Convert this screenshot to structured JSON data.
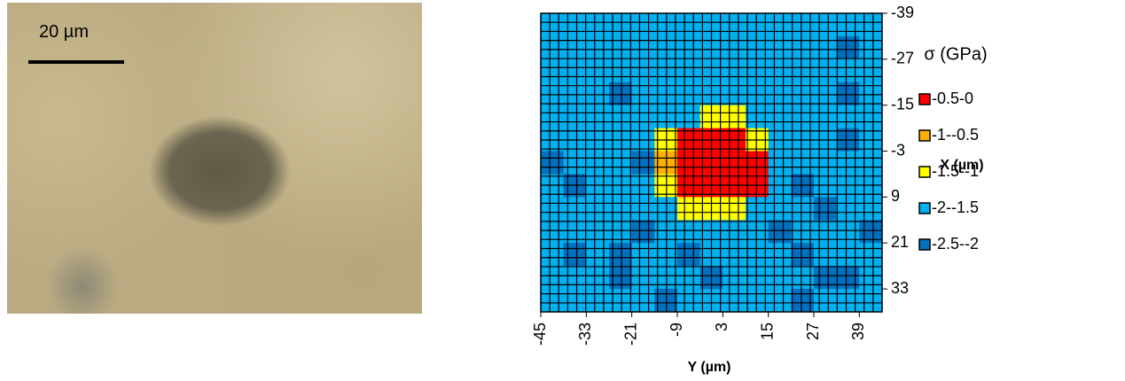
{
  "micrograph": {
    "scale_bar_label": "20 µm"
  },
  "chart_data": {
    "type": "contour",
    "x_label": "Y (µm)",
    "y_label": "X (µm)",
    "legend_title": "σ (GPa)",
    "x": [
      -42,
      -36,
      -30,
      -24,
      -18,
      -12,
      -6,
      0,
      6,
      12,
      18,
      24,
      30,
      36,
      42
    ],
    "y": [
      -36,
      -30,
      -24,
      -18,
      -12,
      -6,
      0,
      6,
      12,
      18,
      24,
      30,
      36
    ],
    "z": [
      [
        -1.8,
        -1.8,
        -1.8,
        -1.8,
        -1.8,
        -1.8,
        -1.8,
        -1.8,
        -1.8,
        -1.8,
        -1.8,
        -1.8,
        -1.8,
        -1.8,
        -1.8
      ],
      [
        -1.8,
        -1.8,
        -1.8,
        -1.8,
        -1.8,
        -1.8,
        -1.8,
        -1.8,
        -1.8,
        -1.8,
        -1.8,
        -1.8,
        -1.8,
        -2.2,
        -1.8
      ],
      [
        -1.8,
        -1.8,
        -1.8,
        -1.8,
        -1.8,
        -1.8,
        -1.8,
        -1.8,
        -1.8,
        -1.8,
        -1.8,
        -1.8,
        -1.8,
        -1.8,
        -1.8
      ],
      [
        -1.8,
        -1.8,
        -1.8,
        -2.2,
        -1.8,
        -1.8,
        -1.8,
        -1.8,
        -1.8,
        -1.8,
        -1.8,
        -1.8,
        -1.8,
        -2.2,
        -1.8
      ],
      [
        -1.8,
        -1.8,
        -1.8,
        -1.8,
        -1.8,
        -1.8,
        -1.8,
        -1.2,
        -1.2,
        -1.8,
        -1.8,
        -1.8,
        -1.8,
        -1.8,
        -1.8
      ],
      [
        -1.8,
        -1.8,
        -1.8,
        -1.8,
        -1.8,
        -1.2,
        -0.3,
        -0.3,
        -0.3,
        -1.2,
        -1.8,
        -1.8,
        -1.8,
        -2.2,
        -1.8
      ],
      [
        -2.2,
        -1.8,
        -1.8,
        -1.8,
        -2.2,
        -0.8,
        -0.3,
        -0.3,
        -0.3,
        -0.3,
        -1.8,
        -1.8,
        -1.8,
        -1.8,
        -1.8
      ],
      [
        -1.8,
        -2.2,
        -1.8,
        -1.8,
        -1.8,
        -1.2,
        -0.3,
        -0.3,
        -0.3,
        -0.3,
        -1.8,
        -2.2,
        -1.8,
        -1.8,
        -1.8
      ],
      [
        -1.8,
        -1.8,
        -1.8,
        -1.8,
        -1.8,
        -1.8,
        -1.2,
        -1.2,
        -1.2,
        -1.8,
        -1.8,
        -1.8,
        -2.2,
        -1.8,
        -1.8
      ],
      [
        -1.8,
        -1.8,
        -1.8,
        -1.8,
        -2.2,
        -1.8,
        -1.8,
        -1.8,
        -1.8,
        -1.8,
        -2.2,
        -1.8,
        -1.8,
        -1.8,
        -2.2
      ],
      [
        -1.8,
        -2.2,
        -1.8,
        -2.2,
        -1.8,
        -1.8,
        -2.2,
        -1.8,
        -1.8,
        -1.8,
        -1.8,
        -2.2,
        -1.8,
        -1.8,
        -1.8
      ],
      [
        -1.8,
        -1.8,
        -1.8,
        -2.2,
        -1.8,
        -1.8,
        -1.8,
        -2.2,
        -1.8,
        -1.8,
        -1.8,
        -1.8,
        -2.2,
        -2.2,
        -1.8
      ],
      [
        -1.8,
        -1.8,
        -1.8,
        -1.8,
        -1.8,
        -2.2,
        -1.8,
        -1.8,
        -1.8,
        -1.8,
        -1.8,
        -2.2,
        -1.8,
        -1.8,
        -1.8
      ]
    ],
    "levels": [
      {
        "label": "-0.5-0",
        "min": -0.5,
        "max": 0,
        "color": "#ff0000"
      },
      {
        "label": "-1--0.5",
        "min": -1,
        "max": -0.5,
        "color": "#ffb000"
      },
      {
        "label": "-1.5--1",
        "min": -1.5,
        "max": -1,
        "color": "#ffff00"
      },
      {
        "label": "-2--1.5",
        "min": -2,
        "max": -1.5,
        "color": "#00b0f0"
      },
      {
        "label": "-2.5--2",
        "min": -2.5,
        "max": -2,
        "color": "#0070c0"
      }
    ],
    "xlim": [
      -45,
      45
    ],
    "ylim": [
      -39,
      39
    ],
    "xticks": [
      -45,
      -33,
      -21,
      -9,
      3,
      15,
      27,
      39
    ],
    "yticks": [
      -39,
      -27,
      -15,
      -3,
      9,
      21,
      33
    ]
  }
}
